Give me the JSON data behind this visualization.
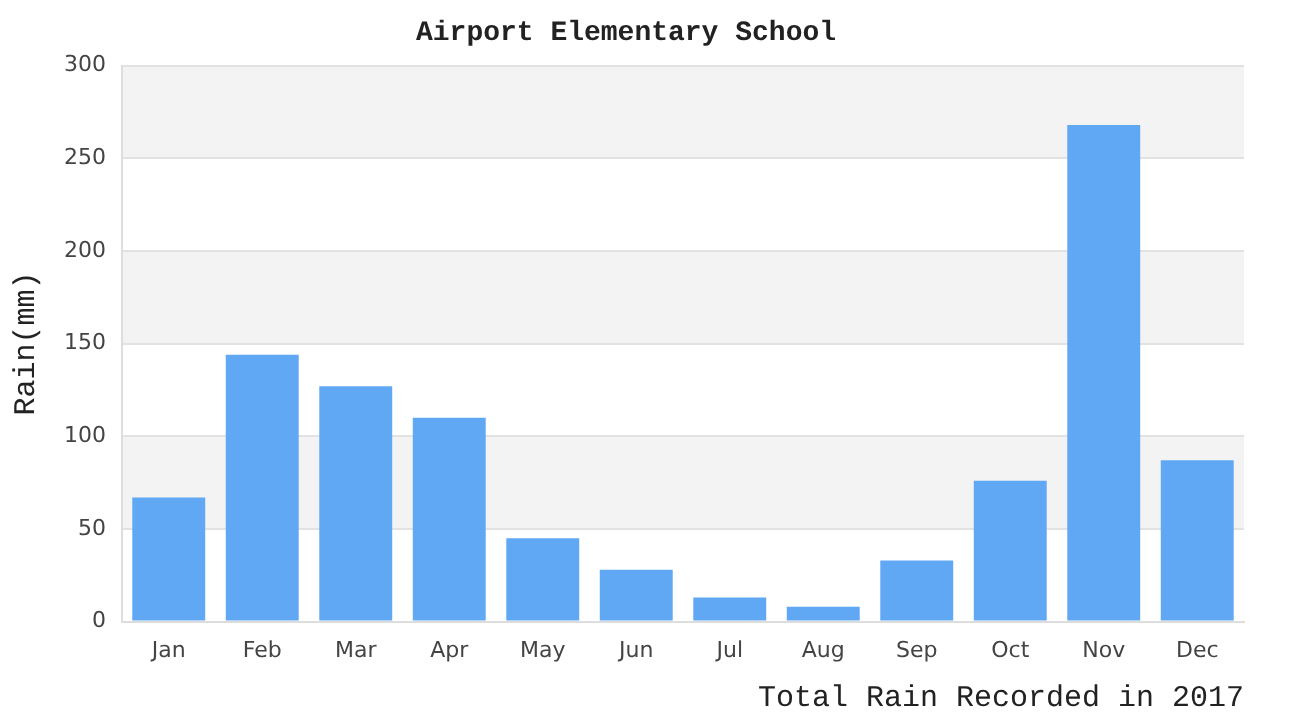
{
  "chart_data": {
    "type": "bar",
    "title": "Airport Elementary School",
    "xlabel": "Total Rain Recorded in 2017",
    "ylabel": "Rain(mm)",
    "categories": [
      "Jan",
      "Feb",
      "Mar",
      "Apr",
      "May",
      "Jun",
      "Jul",
      "Aug",
      "Sep",
      "Oct",
      "Nov",
      "Dec"
    ],
    "values": [
      67,
      144,
      127,
      110,
      45,
      28,
      13,
      8,
      33,
      76,
      268,
      87
    ],
    "color": "#60a8f4",
    "ylim": [
      0,
      300
    ],
    "yticks": [
      0,
      50,
      100,
      150,
      200,
      250,
      300
    ],
    "grid": "y",
    "legend": false
  }
}
